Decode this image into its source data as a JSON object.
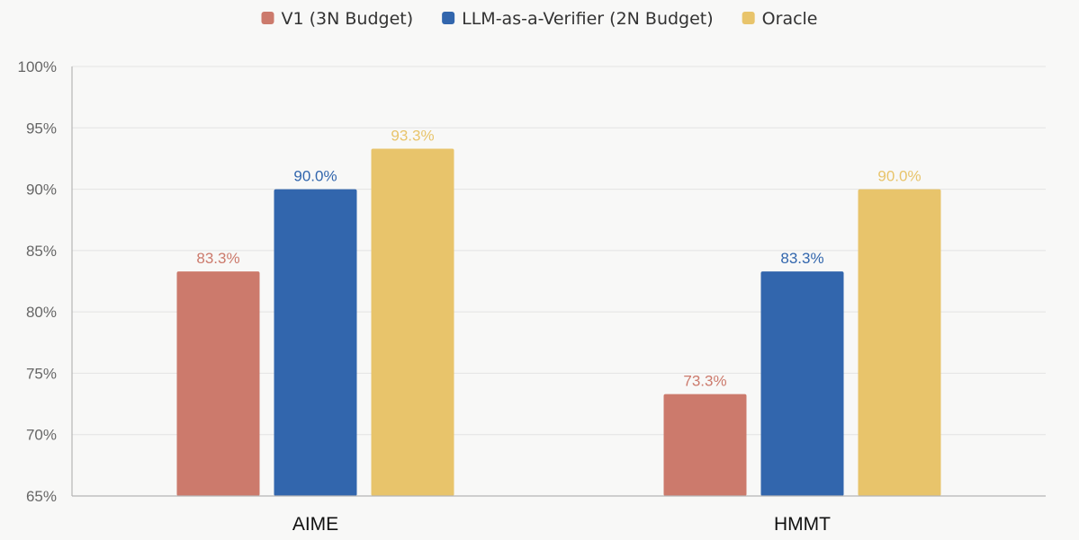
{
  "chart_data": {
    "type": "bar",
    "title": "",
    "xlabel": "",
    "ylabel": "",
    "categories": [
      "AIME",
      "HMMT"
    ],
    "series": [
      {
        "name": "V1 (3N Budget)",
        "color": "#cc7a6c",
        "values": [
          83.3,
          73.3
        ],
        "labels": [
          "83.3%",
          "73.3%"
        ]
      },
      {
        "name": "LLM-as-a-Verifier (2N Budget)",
        "color": "#3266ad",
        "values": [
          90.0,
          83.3
        ],
        "labels": [
          "90.0%",
          "83.3%"
        ]
      },
      {
        "name": "Oracle",
        "color": "#e8c46b",
        "values": [
          93.3,
          90.0
        ],
        "labels": [
          "93.3%",
          "90.0%"
        ]
      }
    ],
    "ylim": [
      65,
      100
    ],
    "yticks": [
      65,
      70,
      75,
      80,
      85,
      90,
      95,
      100
    ],
    "ytick_labels": [
      "65%",
      "70%",
      "75%",
      "80%",
      "85%",
      "90%",
      "95%",
      "100%"
    ],
    "grid": true,
    "legend_position": "top-center"
  }
}
